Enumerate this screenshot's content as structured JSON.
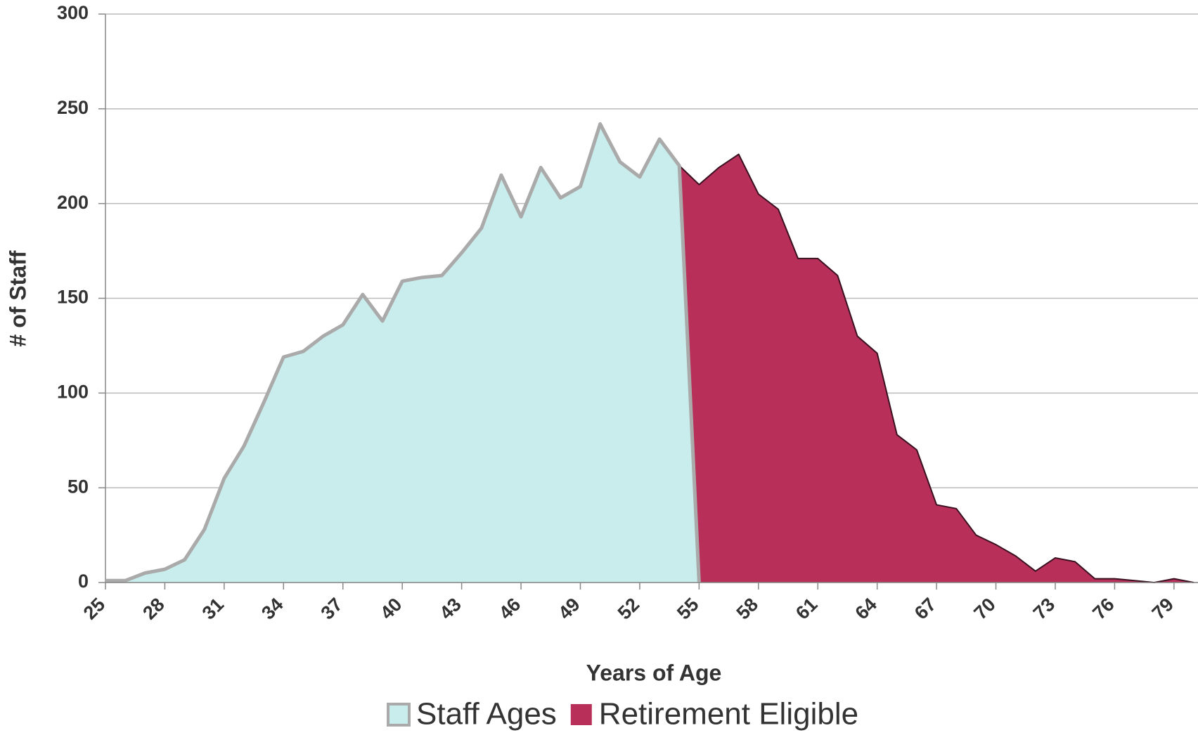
{
  "chart_data": {
    "type": "area",
    "xlabel": "Years of Age",
    "ylabel": "# of Staff",
    "x": [
      25,
      26,
      27,
      28,
      29,
      30,
      31,
      32,
      33,
      34,
      35,
      36,
      37,
      38,
      39,
      40,
      41,
      42,
      43,
      44,
      45,
      46,
      47,
      48,
      49,
      50,
      51,
      52,
      53,
      54,
      55,
      56,
      57,
      58,
      59,
      60,
      61,
      62,
      63,
      64,
      65,
      66,
      67,
      68,
      69,
      70,
      71,
      72,
      73,
      74,
      75,
      76,
      77,
      78,
      79,
      80
    ],
    "series": [
      {
        "name": "Staff Ages",
        "color": "#c9ecec",
        "edge": "#aaaaaa",
        "values": [
          1,
          1,
          5,
          7,
          12,
          28,
          55,
          72,
          95,
          119,
          122,
          130,
          136,
          152,
          138,
          159,
          161,
          162,
          174,
          187,
          215,
          193,
          219,
          203,
          209,
          242,
          222,
          214,
          234,
          220,
          0,
          null,
          null,
          null,
          null,
          null,
          null,
          null,
          null,
          null,
          null,
          null,
          null,
          null,
          null,
          null,
          null,
          null,
          null,
          null,
          null,
          null,
          null,
          null,
          null,
          null
        ]
      },
      {
        "name": "Retirement Eligible",
        "color": "#b8305a",
        "edge": "#3a1020",
        "values": [
          null,
          null,
          null,
          null,
          null,
          null,
          null,
          null,
          null,
          null,
          null,
          null,
          null,
          null,
          null,
          null,
          null,
          null,
          null,
          null,
          null,
          null,
          null,
          null,
          null,
          null,
          null,
          null,
          null,
          220,
          210,
          219,
          226,
          205,
          197,
          171,
          171,
          162,
          130,
          121,
          78,
          70,
          41,
          39,
          25,
          20,
          14,
          6,
          13,
          11,
          2,
          2,
          1,
          0,
          2,
          0
        ]
      }
    ],
    "xlim": [
      25,
      80
    ],
    "xticks": [
      25,
      28,
      31,
      34,
      37,
      40,
      43,
      46,
      49,
      52,
      55,
      58,
      61,
      64,
      67,
      70,
      73,
      76,
      79
    ],
    "ylim": [
      0,
      300
    ],
    "yticks": [
      0,
      50,
      100,
      150,
      200,
      250,
      300
    ],
    "grid": true
  }
}
